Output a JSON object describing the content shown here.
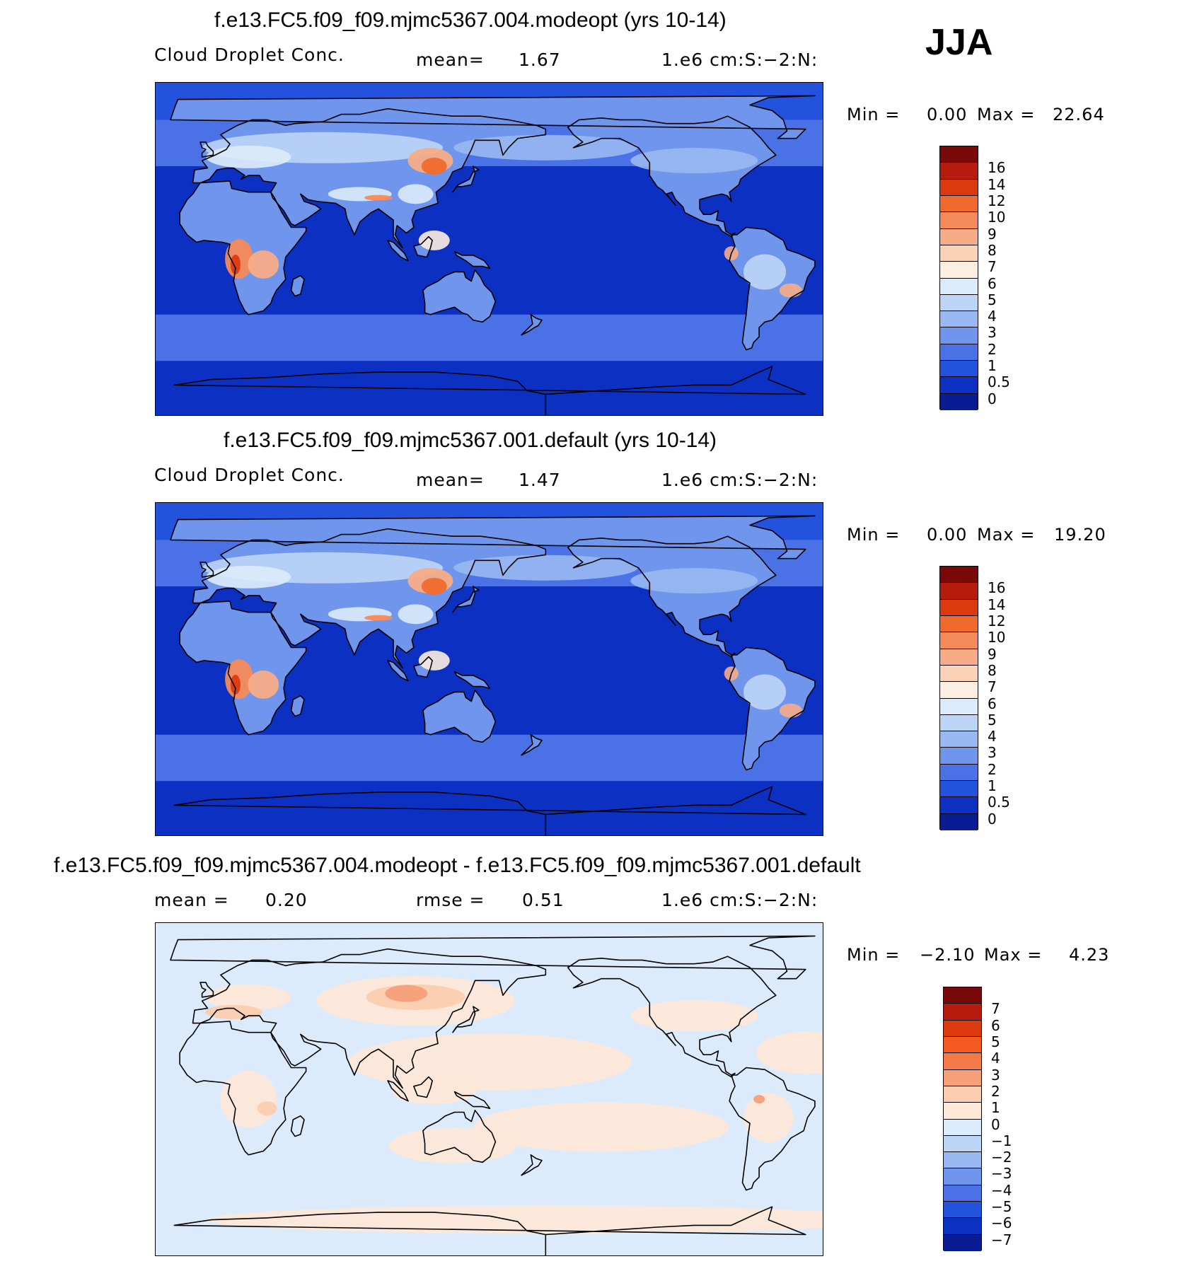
{
  "season": "JJA",
  "chart_data": [
    {
      "type": "heatmap",
      "title": "f.e13.FC5.f09_f09.mjmc5367.004.modeopt (yrs 10-14)",
      "left_label": "Cloud Droplet Conc.",
      "stat_label": "mean=",
      "stat_value": "1.67",
      "units": "1.e6 cm:S:−2:N:",
      "min_label": "Min =",
      "min_value": "0.00",
      "max_label": "Max =",
      "max_value": "22.64",
      "levels": [
        "16",
        "14",
        "12",
        "10",
        "9",
        "8",
        "7",
        "6",
        "5",
        "4",
        "3",
        "2",
        "1",
        "0.5",
        "0"
      ],
      "palette": [
        "#7a0a0a",
        "#b51c0e",
        "#dc3a0e",
        "#f06a2e",
        "#f48a5a",
        "#f7ac88",
        "#fbd2b6",
        "#fdeee2",
        "#dcebfb",
        "#bcd5f7",
        "#99b8f2",
        "#6f95ec",
        "#4a72e6",
        "#2352dc",
        "#0c30c2",
        "#091c93"
      ]
    },
    {
      "type": "heatmap",
      "title": "f.e13.FC5.f09_f09.mjmc5367.001.default (yrs 10-14)",
      "left_label": "Cloud Droplet Conc.",
      "stat_label": "mean=",
      "stat_value": "1.47",
      "units": "1.e6 cm:S:−2:N:",
      "min_label": "Min =",
      "min_value": "0.00",
      "max_label": "Max =",
      "max_value": "19.20",
      "levels": [
        "16",
        "14",
        "12",
        "10",
        "9",
        "8",
        "7",
        "6",
        "5",
        "4",
        "3",
        "2",
        "1",
        "0.5",
        "0"
      ],
      "palette": [
        "#7a0a0a",
        "#b51c0e",
        "#dc3a0e",
        "#f06a2e",
        "#f48a5a",
        "#f7ac88",
        "#fbd2b6",
        "#fdeee2",
        "#dcebfb",
        "#bcd5f7",
        "#99b8f2",
        "#6f95ec",
        "#4a72e6",
        "#2352dc",
        "#0c30c2",
        "#091c93"
      ]
    },
    {
      "type": "heatmap",
      "title": "f.e13.FC5.f09_f09.mjmc5367.004.modeopt - f.e13.FC5.f09_f09.mjmc5367.001.default",
      "left_label": "mean =",
      "left_value": "0.20",
      "stat_label": "rmse =",
      "stat_value": "0.51",
      "units": "1.e6 cm:S:−2:N:",
      "min_label": "Min =",
      "min_value": "−2.10",
      "max_label": "Max =",
      "max_value": "4.23",
      "levels": [
        "7",
        "6",
        "5",
        "4",
        "3",
        "2",
        "1",
        "0",
        "−1",
        "−2",
        "−3",
        "−4",
        "−5",
        "−6",
        "−7"
      ],
      "palette": [
        "#7a0a0a",
        "#b51c0e",
        "#dc3a0e",
        "#f55a22",
        "#f37a48",
        "#f6a07a",
        "#fbcdb0",
        "#fde8d8",
        "#dcebfb",
        "#bcd5f7",
        "#99b8f2",
        "#6f95ec",
        "#4a72e6",
        "#2352dc",
        "#0c30c2",
        "#091c93"
      ]
    }
  ]
}
